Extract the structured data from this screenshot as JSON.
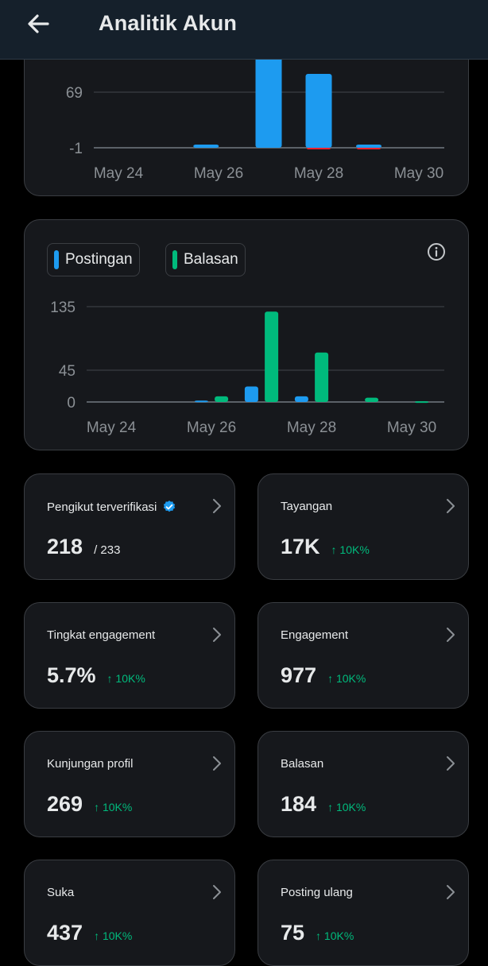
{
  "header": {
    "title": "Analitik Akun",
    "back_icon": "arrow-left-icon"
  },
  "colors": {
    "posts": "#1d9bf0",
    "replies": "#00ba7c",
    "delta": "#00ba7c",
    "verified": "#1d9bf0"
  },
  "chart_data": [
    {
      "type": "bar",
      "x_ticks": [
        "May 24",
        "May 26",
        "May 28",
        "May 30"
      ],
      "y_ticks": [
        "69",
        "-1"
      ],
      "series": [
        {
          "color": "#1d9bf0",
          "values": [
            {
              "x": 25.75,
              "y": 3
            },
            {
              "x": 27,
              "y": 126
            },
            {
              "x": 28,
              "y": 92
            },
            {
              "x": 29,
              "y": 3
            }
          ]
        },
        {
          "color": "#f4212e",
          "values": [
            {
              "x": 28,
              "y": -2
            },
            {
              "x": 29,
              "y": -2
            }
          ]
        }
      ]
    },
    {
      "type": "bar",
      "x_ticks": [
        "May 24",
        "May 26",
        "May 28",
        "May 30"
      ],
      "y_ticks": [
        "135",
        "45",
        "0"
      ],
      "series": [
        {
          "name": "Postingan",
          "color": "#1d9bf0",
          "values": [
            {
              "x": 25.8,
              "y": 2
            },
            {
              "x": 26.8,
              "y": 22
            },
            {
              "x": 27.8,
              "y": 8
            }
          ]
        },
        {
          "name": "Balasan",
          "color": "#00ba7c",
          "values": [
            {
              "x": 26.2,
              "y": 8
            },
            {
              "x": 27.2,
              "y": 128
            },
            {
              "x": 28.2,
              "y": 70
            },
            {
              "x": 29.2,
              "y": 6
            },
            {
              "x": 30.2,
              "y": 1
            }
          ]
        }
      ],
      "info_icon": "info-icon"
    }
  ],
  "metrics": [
    {
      "label": "Pengikut terverifikasi",
      "value": "218",
      "sub": "/ 233",
      "delta": "",
      "verified_icon": "verified-badge-icon"
    },
    {
      "label": "Tayangan",
      "value": "17K",
      "sub": "",
      "delta": "↑ 10K%"
    },
    {
      "label": "Tingkat engagement",
      "value": "5.7%",
      "sub": "",
      "delta": "↑ 10K%"
    },
    {
      "label": "Engagement",
      "value": "977",
      "sub": "",
      "delta": "↑ 10K%"
    },
    {
      "label": "Kunjungan profil",
      "value": "269",
      "sub": "",
      "delta": "↑ 10K%"
    },
    {
      "label": "Balasan",
      "value": "184",
      "sub": "",
      "delta": "↑ 10K%"
    },
    {
      "label": "Suka",
      "value": "437",
      "sub": "",
      "delta": "↑ 10K%"
    },
    {
      "label": "Posting ulang",
      "value": "75",
      "sub": "",
      "delta": "↑ 10K%"
    }
  ]
}
